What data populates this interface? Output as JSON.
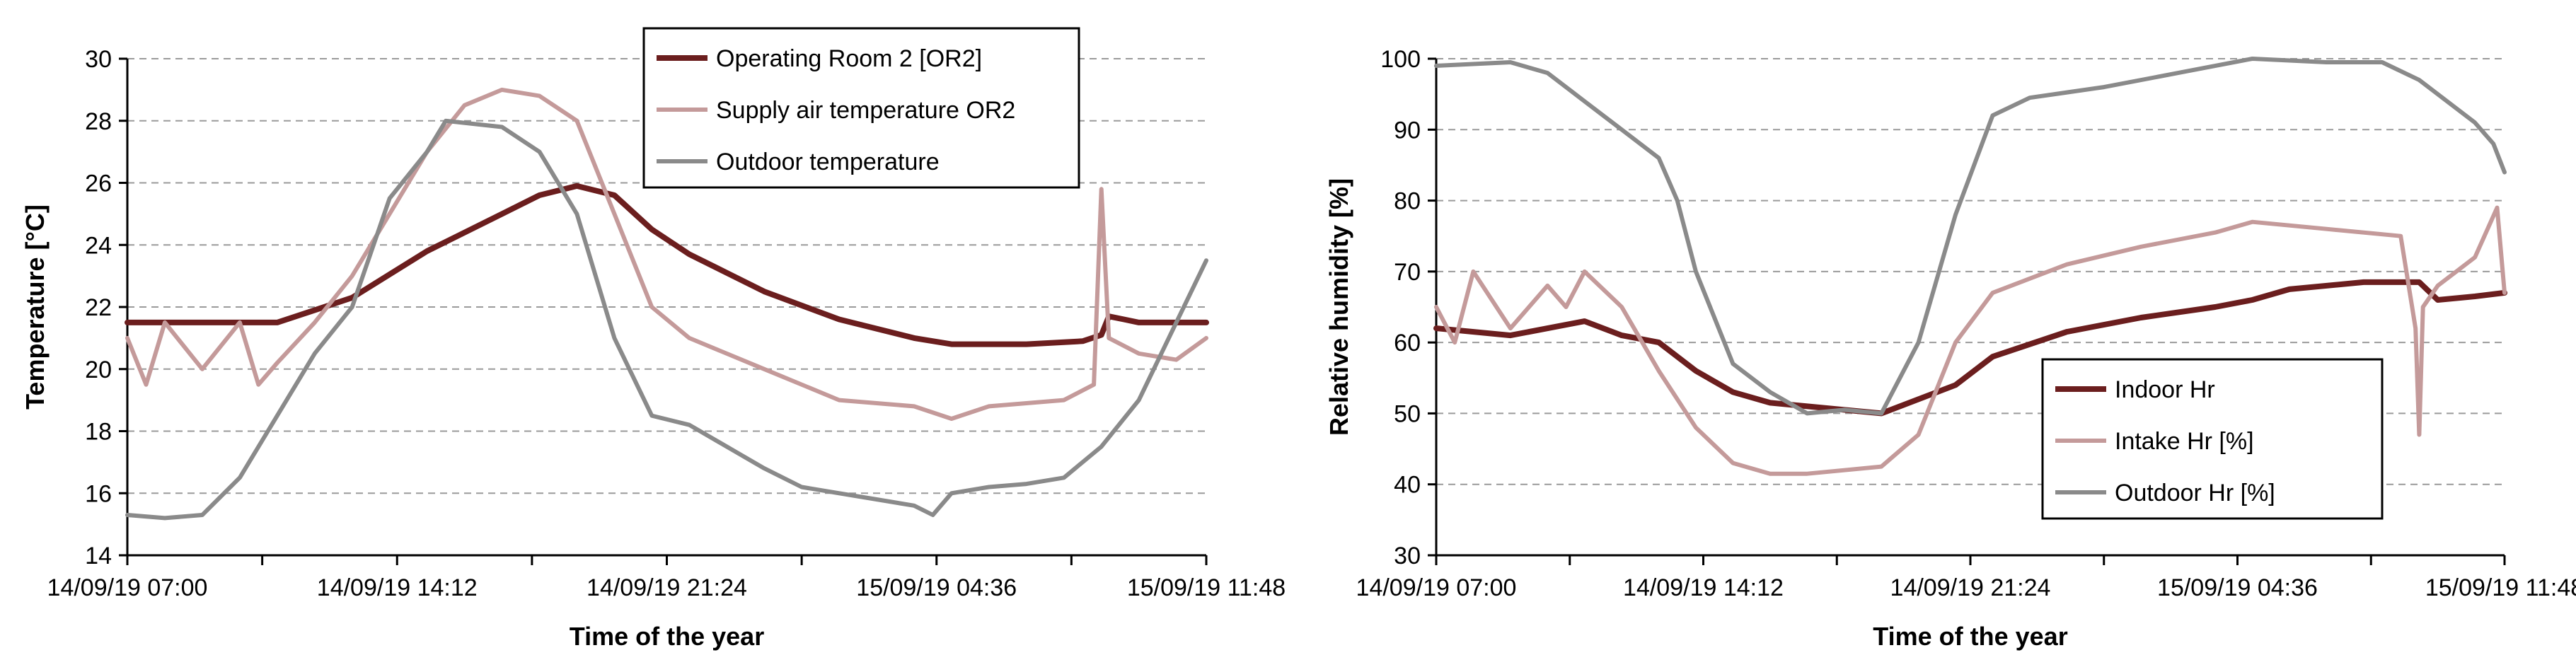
{
  "chart_data": [
    {
      "type": "line",
      "xlabel": "Time of the year",
      "ylabel": "Temperature [°C]",
      "ylim": [
        14,
        30
      ],
      "yticks": [
        "14",
        "16",
        "18",
        "20",
        "22",
        "24",
        "26",
        "28",
        "30"
      ],
      "xticks": [
        "14/09/19 07:00",
        "14/09/19 14:12",
        "14/09/19 21:24",
        "15/09/19 04:36",
        "15/09/19 11:48"
      ],
      "xlim_hours": [
        0,
        28.8
      ],
      "grid": true,
      "legend_position": "top-center",
      "series": [
        {
          "name": "Operating Room 2 [OR2]",
          "color": "#6b1e1e",
          "points": [
            [
              0,
              21.5
            ],
            [
              4,
              21.5
            ],
            [
              5,
              21.9
            ],
            [
              6,
              22.3
            ],
            [
              8,
              23.8
            ],
            [
              10,
              25.0
            ],
            [
              11,
              25.6
            ],
            [
              12,
              25.9
            ],
            [
              13,
              25.6
            ],
            [
              14,
              24.5
            ],
            [
              15,
              23.7
            ],
            [
              17,
              22.5
            ],
            [
              19,
              21.6
            ],
            [
              21,
              21.0
            ],
            [
              22,
              20.8
            ],
            [
              24,
              20.8
            ],
            [
              25.5,
              20.9
            ],
            [
              26,
              21.1
            ],
            [
              26.2,
              21.7
            ],
            [
              26.6,
              21.6
            ],
            [
              27,
              21.5
            ],
            [
              28.8,
              21.5
            ]
          ]
        },
        {
          "name": "Supply air temperature OR2",
          "color": "#c49a9a",
          "points": [
            [
              0,
              21.0
            ],
            [
              0.5,
              19.5
            ],
            [
              1,
              21.5
            ],
            [
              2,
              20.0
            ],
            [
              3,
              21.5
            ],
            [
              3.5,
              19.5
            ],
            [
              4,
              20.2
            ],
            [
              5,
              21.5
            ],
            [
              6,
              23.0
            ],
            [
              8,
              27.0
            ],
            [
              9,
              28.5
            ],
            [
              10,
              29.0
            ],
            [
              11,
              28.8
            ],
            [
              12,
              28.0
            ],
            [
              13,
              25.0
            ],
            [
              14,
              22.0
            ],
            [
              15,
              21.0
            ],
            [
              17,
              20.0
            ],
            [
              19,
              19.0
            ],
            [
              21,
              18.8
            ],
            [
              22,
              18.4
            ],
            [
              23,
              18.8
            ],
            [
              25,
              19.0
            ],
            [
              25.8,
              19.5
            ],
            [
              26,
              25.8
            ],
            [
              26.2,
              21.0
            ],
            [
              27,
              20.5
            ],
            [
              28,
              20.3
            ],
            [
              28.8,
              21.0
            ]
          ]
        },
        {
          "name": "Outdoor temperature",
          "color": "#8a8a8a",
          "points": [
            [
              0,
              15.3
            ],
            [
              1,
              15.2
            ],
            [
              2,
              15.3
            ],
            [
              3,
              16.5
            ],
            [
              5,
              20.5
            ],
            [
              6,
              22.0
            ],
            [
              7,
              25.5
            ],
            [
              8,
              27.0
            ],
            [
              8.5,
              28.0
            ],
            [
              10,
              27.8
            ],
            [
              11,
              27.0
            ],
            [
              12,
              25.0
            ],
            [
              13,
              21.0
            ],
            [
              14,
              18.5
            ],
            [
              15,
              18.2
            ],
            [
              16,
              17.5
            ],
            [
              17,
              16.8
            ],
            [
              18,
              16.2
            ],
            [
              19,
              16.0
            ],
            [
              20,
              15.8
            ],
            [
              21,
              15.6
            ],
            [
              21.5,
              15.3
            ],
            [
              22,
              16.0
            ],
            [
              23,
              16.2
            ],
            [
              24,
              16.3
            ],
            [
              25,
              16.5
            ],
            [
              26,
              17.5
            ],
            [
              27,
              19.0
            ],
            [
              28,
              21.5
            ],
            [
              28.8,
              23.5
            ]
          ]
        }
      ]
    },
    {
      "type": "line",
      "xlabel": "Time of the year",
      "ylabel": "Relative humidity [%]",
      "ylim": [
        30,
        100
      ],
      "yticks": [
        "30",
        "40",
        "50",
        "60",
        "70",
        "80",
        "90",
        "100"
      ],
      "xticks": [
        "14/09/19 07:00",
        "14/09/19 14:12",
        "14/09/19 21:24",
        "15/09/19 04:36",
        "15/09/19 11:48"
      ],
      "xlim_hours": [
        0,
        28.8
      ],
      "grid": true,
      "legend_position": "bottom-center",
      "series": [
        {
          "name": "Indoor Hr",
          "color": "#6b1e1e",
          "points": [
            [
              0,
              62
            ],
            [
              2,
              61
            ],
            [
              4,
              63
            ],
            [
              5,
              61
            ],
            [
              6,
              60
            ],
            [
              7,
              56
            ],
            [
              8,
              53
            ],
            [
              9,
              51.5
            ],
            [
              10,
              51
            ],
            [
              11,
              50.5
            ],
            [
              12,
              50
            ],
            [
              13,
              52
            ],
            [
              14,
              54
            ],
            [
              15,
              58
            ],
            [
              17,
              61.5
            ],
            [
              19,
              63.5
            ],
            [
              21,
              65
            ],
            [
              22,
              66
            ],
            [
              23,
              67.5
            ],
            [
              25,
              68.5
            ],
            [
              26.5,
              68.5
            ],
            [
              27,
              66
            ],
            [
              28,
              66.5
            ],
            [
              28.8,
              67
            ]
          ]
        },
        {
          "name": "Intake Hr [%]",
          "color": "#c49a9a",
          "points": [
            [
              0,
              65
            ],
            [
              0.5,
              60
            ],
            [
              1,
              70
            ],
            [
              2,
              62
            ],
            [
              3,
              68
            ],
            [
              3.5,
              65
            ],
            [
              4,
              70
            ],
            [
              5,
              65
            ],
            [
              6,
              56
            ],
            [
              7,
              48
            ],
            [
              8,
              43
            ],
            [
              9,
              41.5
            ],
            [
              10,
              41.5
            ],
            [
              11,
              42
            ],
            [
              12,
              42.5
            ],
            [
              13,
              47
            ],
            [
              14,
              60
            ],
            [
              15,
              67
            ],
            [
              17,
              71
            ],
            [
              19,
              73.5
            ],
            [
              21,
              75.5
            ],
            [
              22,
              77
            ],
            [
              24,
              76
            ],
            [
              26,
              75
            ],
            [
              26.4,
              62
            ],
            [
              26.5,
              47
            ],
            [
              26.6,
              65
            ],
            [
              27,
              68
            ],
            [
              28,
              72
            ],
            [
              28.6,
              79
            ],
            [
              28.8,
              67
            ]
          ]
        },
        {
          "name": "Outdoor Hr [%]",
          "color": "#8a8a8a",
          "points": [
            [
              0,
              99
            ],
            [
              2,
              99.5
            ],
            [
              3,
              98
            ],
            [
              4,
              94
            ],
            [
              5,
              90
            ],
            [
              6,
              86
            ],
            [
              6.5,
              80
            ],
            [
              7,
              70
            ],
            [
              8,
              57
            ],
            [
              9,
              53
            ],
            [
              10,
              50
            ],
            [
              11,
              50.5
            ],
            [
              12,
              50
            ],
            [
              13,
              60
            ],
            [
              14,
              78
            ],
            [
              15,
              92
            ],
            [
              16,
              94.5
            ],
            [
              18,
              96
            ],
            [
              20,
              98
            ],
            [
              22,
              100
            ],
            [
              24,
              99.5
            ],
            [
              25.5,
              99.5
            ],
            [
              26.5,
              97
            ],
            [
              28,
              91
            ],
            [
              28.5,
              88
            ],
            [
              28.8,
              84
            ]
          ]
        }
      ]
    }
  ]
}
